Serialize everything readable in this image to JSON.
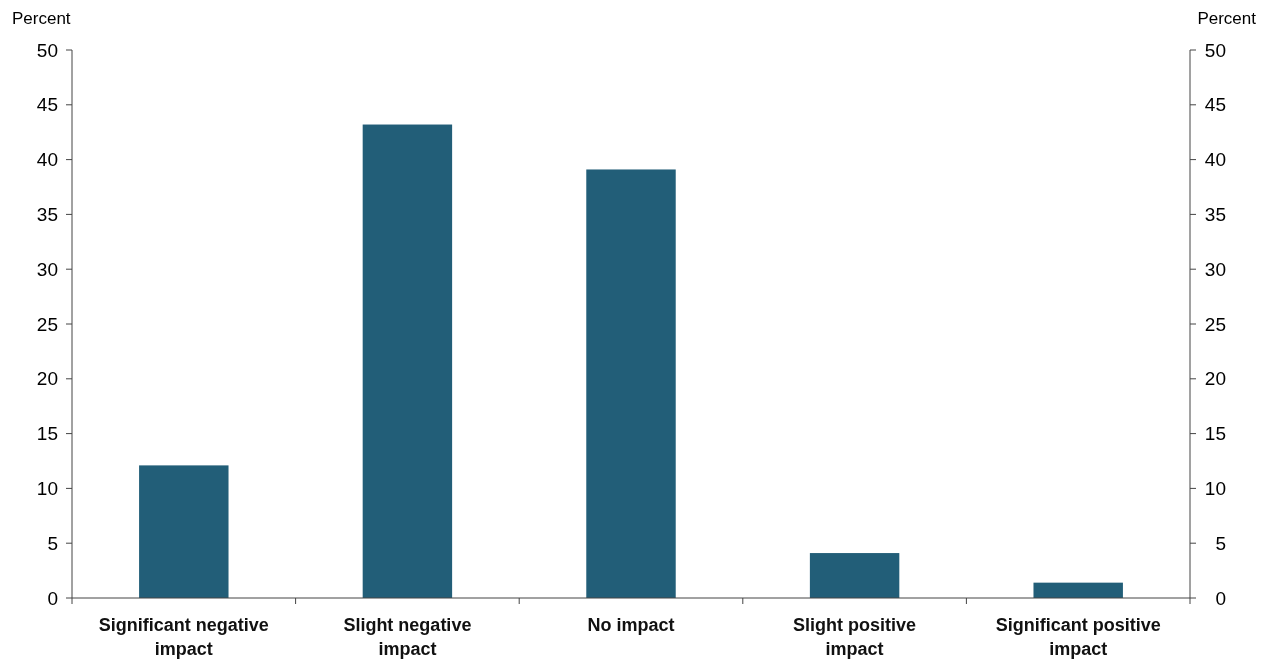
{
  "chart_data": {
    "type": "bar",
    "ylabel": "Percent",
    "y2label": "Percent",
    "categories": [
      "Significant negative impact",
      "Slight negative impact",
      "No impact",
      "Slight positive impact",
      "Significant positive impact"
    ],
    "values": [
      12.1,
      43.2,
      39.1,
      4.1,
      1.4
    ],
    "color": "#225e78",
    "ylim": [
      0,
      50
    ],
    "yticks": [
      0,
      5,
      10,
      15,
      20,
      25,
      30,
      35,
      40,
      45,
      50
    ],
    "y2lim": [
      0,
      50
    ],
    "y2ticks": [
      0,
      5,
      10,
      15,
      20,
      25,
      30,
      35,
      40,
      45,
      50
    ],
    "grid": false
  }
}
